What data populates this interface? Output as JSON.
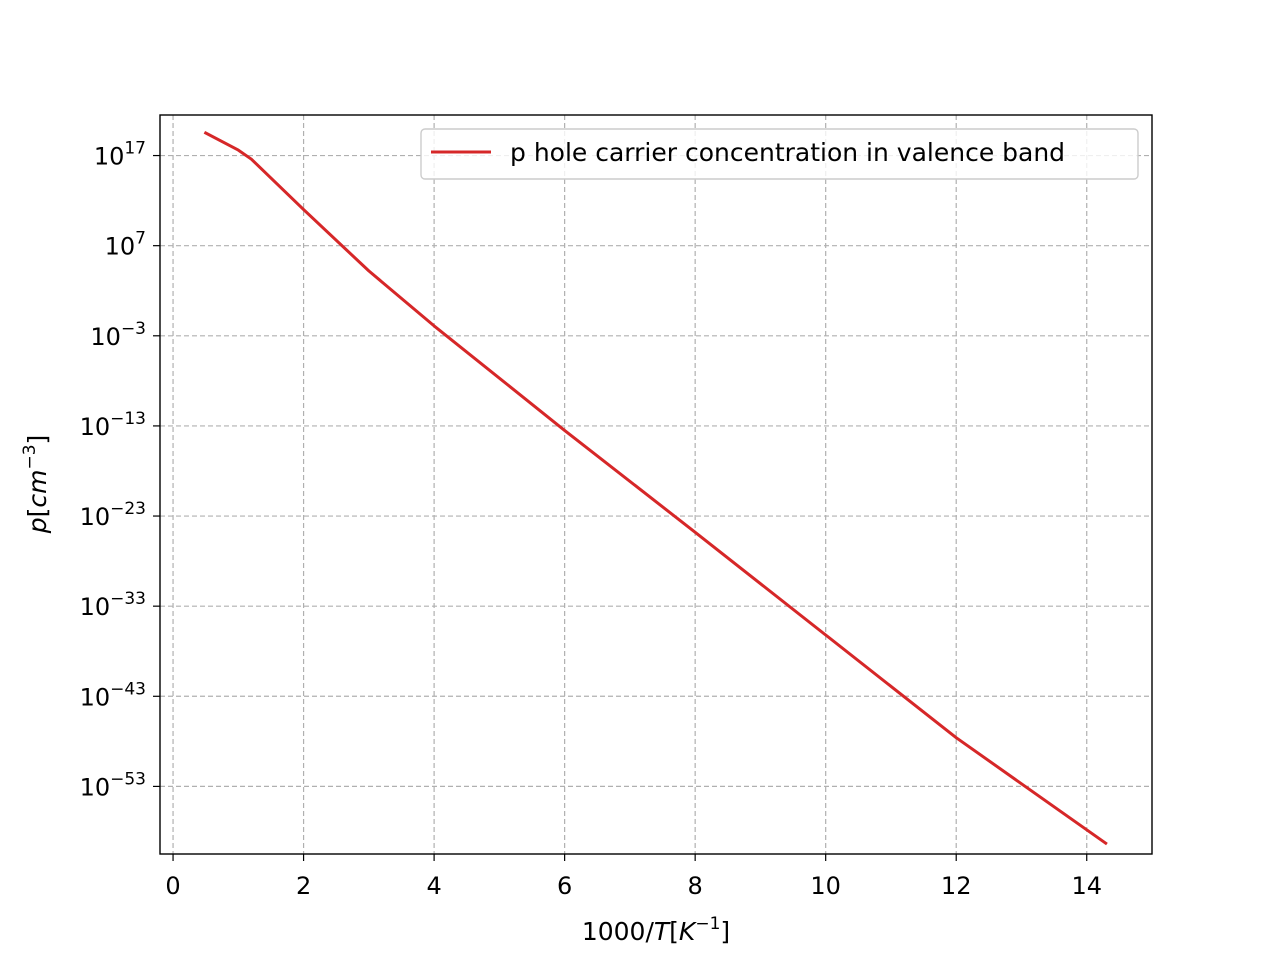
{
  "chart_data": {
    "type": "line",
    "title": "",
    "xlabel": {
      "main": "1000/",
      "italic": "T",
      "bracket_open": "[",
      "unit": "K",
      "exponent": "−1",
      "bracket_close": "]"
    },
    "ylabel": {
      "italic": "p",
      "bracket_open": "[",
      "unit": "cm",
      "exponent": "−3",
      "bracket_close": "]"
    },
    "x_scale": "linear",
    "y_scale": "log",
    "xlim": [
      -0.2,
      15.0
    ],
    "ylim_log10": [
      -60.5,
      21.5
    ],
    "x_ticks": [
      0,
      2,
      4,
      6,
      8,
      10,
      12,
      14
    ],
    "x_tick_labels": [
      "0",
      "2",
      "4",
      "6",
      "8",
      "10",
      "12",
      "14"
    ],
    "y_ticks_log10": [
      17,
      7,
      -3,
      -13,
      -23,
      -33,
      -43,
      -53
    ],
    "y_tick_labels": [
      {
        "base": "10",
        "exp": "17"
      },
      {
        "base": "10",
        "exp": "7"
      },
      {
        "base": "10",
        "exp": "−3"
      },
      {
        "base": "10",
        "exp": "−13"
      },
      {
        "base": "10",
        "exp": "−23"
      },
      {
        "base": "10",
        "exp": "−33"
      },
      {
        "base": "10",
        "exp": "−43"
      },
      {
        "base": "10",
        "exp": "−53"
      }
    ],
    "grid": true,
    "legend_position": "top-right",
    "series": [
      {
        "name": "p hole carrier concentration in valence band",
        "color": "#d62728",
        "points": [
          {
            "x": 0.5,
            "log10_y": 19.5
          },
          {
            "x": 1.0,
            "log10_y": 17.6
          },
          {
            "x": 1.2,
            "log10_y": 16.6
          },
          {
            "x": 2.0,
            "log10_y": 11.0
          },
          {
            "x": 3.0,
            "log10_y": 4.2
          },
          {
            "x": 4.0,
            "log10_y": -1.9
          },
          {
            "x": 6.0,
            "log10_y": -13.5
          },
          {
            "x": 8.0,
            "log10_y": -24.8
          },
          {
            "x": 10.0,
            "log10_y": -36.2
          },
          {
            "x": 12.0,
            "log10_y": -47.6
          },
          {
            "x": 14.29,
            "log10_y": -59.3
          }
        ]
      }
    ]
  }
}
